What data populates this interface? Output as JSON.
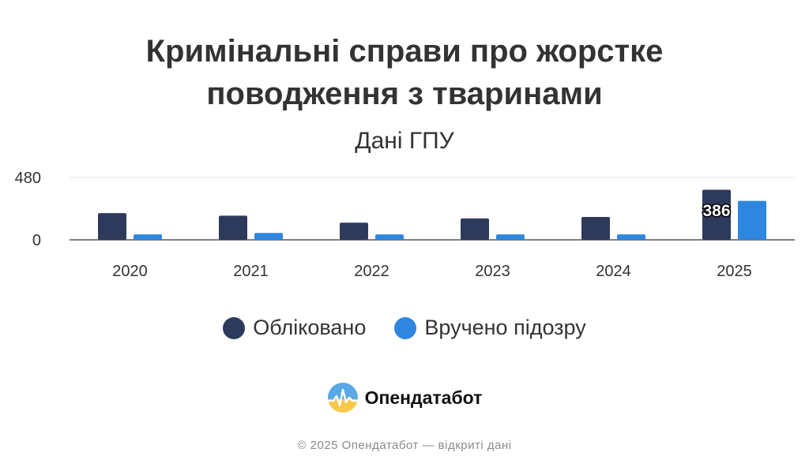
{
  "chart_data": {
    "type": "bar",
    "title_lines": [
      "Кримінальні справи про жорстке",
      "поводження з тваринами"
    ],
    "subtitle": "Дані ГПУ",
    "categories": [
      "2020",
      "2021",
      "2022",
      "2023",
      "2024",
      "2025"
    ],
    "series": [
      {
        "name": "Обліковано",
        "color": "#2e3a5c",
        "values": [
          206,
          186,
          132,
          165,
          176,
          386
        ]
      },
      {
        "name": "Вручено підозру",
        "color": "#2e86de",
        "values": [
          42,
          53,
          42,
          42,
          42,
          300
        ]
      }
    ],
    "y_ticks": [
      "0",
      "480"
    ],
    "ylim": [
      0,
      480
    ],
    "data_labels": [
      {
        "series": 0,
        "category": "2025",
        "text": "386"
      }
    ],
    "grid": true,
    "legend_position": "bottom"
  },
  "brand": {
    "name": "Опендатабот",
    "icon": "opendatabot-logo-icon"
  },
  "footer": "© 2025 Опендатабот — відкриті дані"
}
